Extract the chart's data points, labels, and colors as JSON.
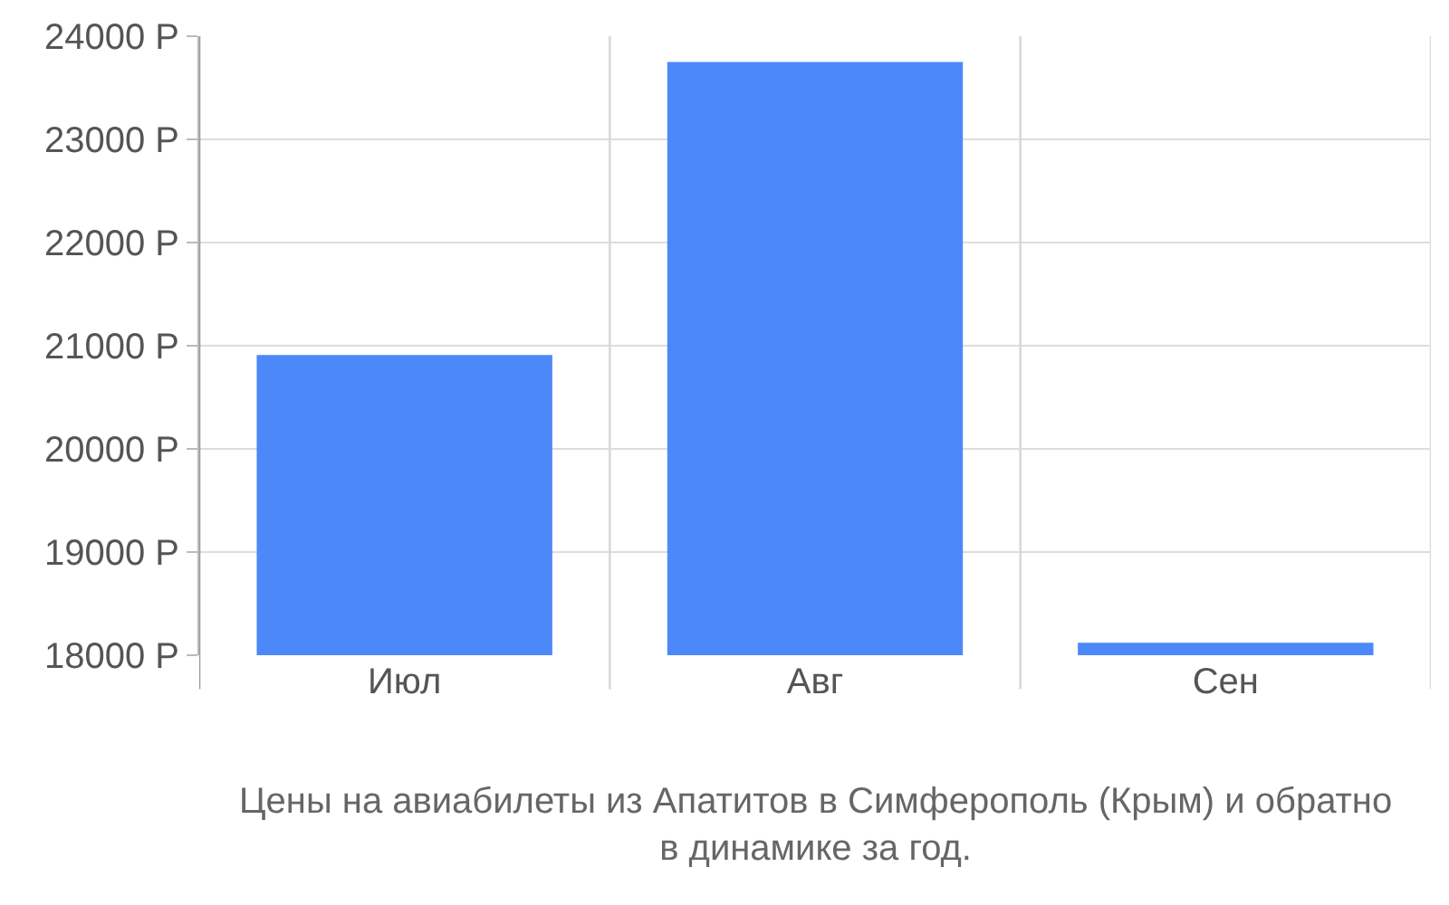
{
  "chart_data": {
    "type": "bar",
    "categories": [
      "Июл",
      "Авг",
      "Сен"
    ],
    "values": [
      20910,
      23750,
      18120
    ],
    "color": "#4d88f9",
    "ylim": [
      18000,
      24000
    ],
    "yticks": [
      {
        "value": 18000,
        "label": "18000 Р"
      },
      {
        "value": 19000,
        "label": "19000 Р"
      },
      {
        "value": 20000,
        "label": "20000 Р"
      },
      {
        "value": 21000,
        "label": "21000 Р"
      },
      {
        "value": 22000,
        "label": "22000 Р"
      },
      {
        "value": 23000,
        "label": "23000 Р"
      },
      {
        "value": 24000,
        "label": "24000 Р"
      }
    ],
    "grid": true,
    "annotations": [
      "Цены на авиабилеты из Апатитов в Симферополь (Крым) и обратно\nв динамике за год."
    ]
  }
}
